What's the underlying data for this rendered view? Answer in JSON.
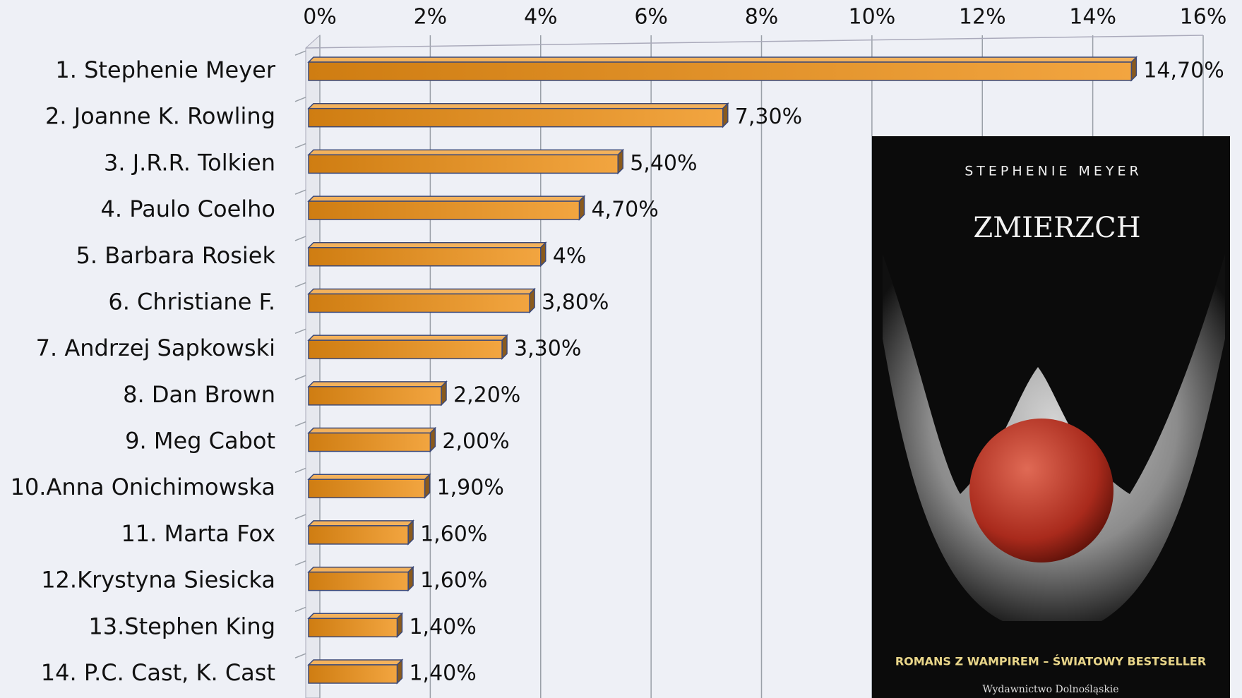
{
  "chart_data": {
    "type": "bar",
    "orientation": "horizontal",
    "categories": [
      "1. Stephenie Meyer",
      "2. Joanne K. Rowling",
      "3. J.R.R. Tolkien",
      "4. Paulo Coelho",
      "5. Barbara Rosiek",
      "6. Christiane F.",
      "7. Andrzej Sapkowski",
      "8. Dan Brown",
      "9. Meg Cabot",
      "10.Anna Onichimowska",
      "11. Marta Fox",
      "12.Krystyna Siesicka",
      "13.Stephen King",
      "14. P.C. Cast, K. Cast"
    ],
    "values": [
      14.7,
      7.3,
      5.4,
      4.7,
      4,
      3.8,
      3.3,
      2.2,
      2.0,
      1.9,
      1.6,
      1.6,
      1.4,
      1.4
    ],
    "value_labels": [
      "14,70%",
      "7,30%",
      "5,40%",
      "4,70%",
      "4%",
      "3,80%",
      "3,30%",
      "2,20%",
      "2,00%",
      "1,90%",
      "1,60%",
      "1,60%",
      "1,40%",
      "1,40%"
    ],
    "color": "#e08f22",
    "xlim": [
      0,
      16
    ],
    "xticks": [
      {
        "value": 0,
        "label": "0%"
      },
      {
        "value": 2,
        "label": "2%"
      },
      {
        "value": 4,
        "label": "4%"
      },
      {
        "value": 6,
        "label": "6%"
      },
      {
        "value": 8,
        "label": "8%"
      },
      {
        "value": 10,
        "label": "10%"
      },
      {
        "value": 12,
        "label": "12%"
      },
      {
        "value": 14,
        "label": "14%"
      },
      {
        "value": 16,
        "label": "16%"
      }
    ],
    "grid": true
  },
  "cover": {
    "author": "STEPHENIE MEYER",
    "title": "ZMIERZCH",
    "tagline": "ROMANS Z WAMPIREM – ŚWIATOWY BESTSELLER",
    "publisher": "Wydawnictwo Dolnośląskie"
  }
}
